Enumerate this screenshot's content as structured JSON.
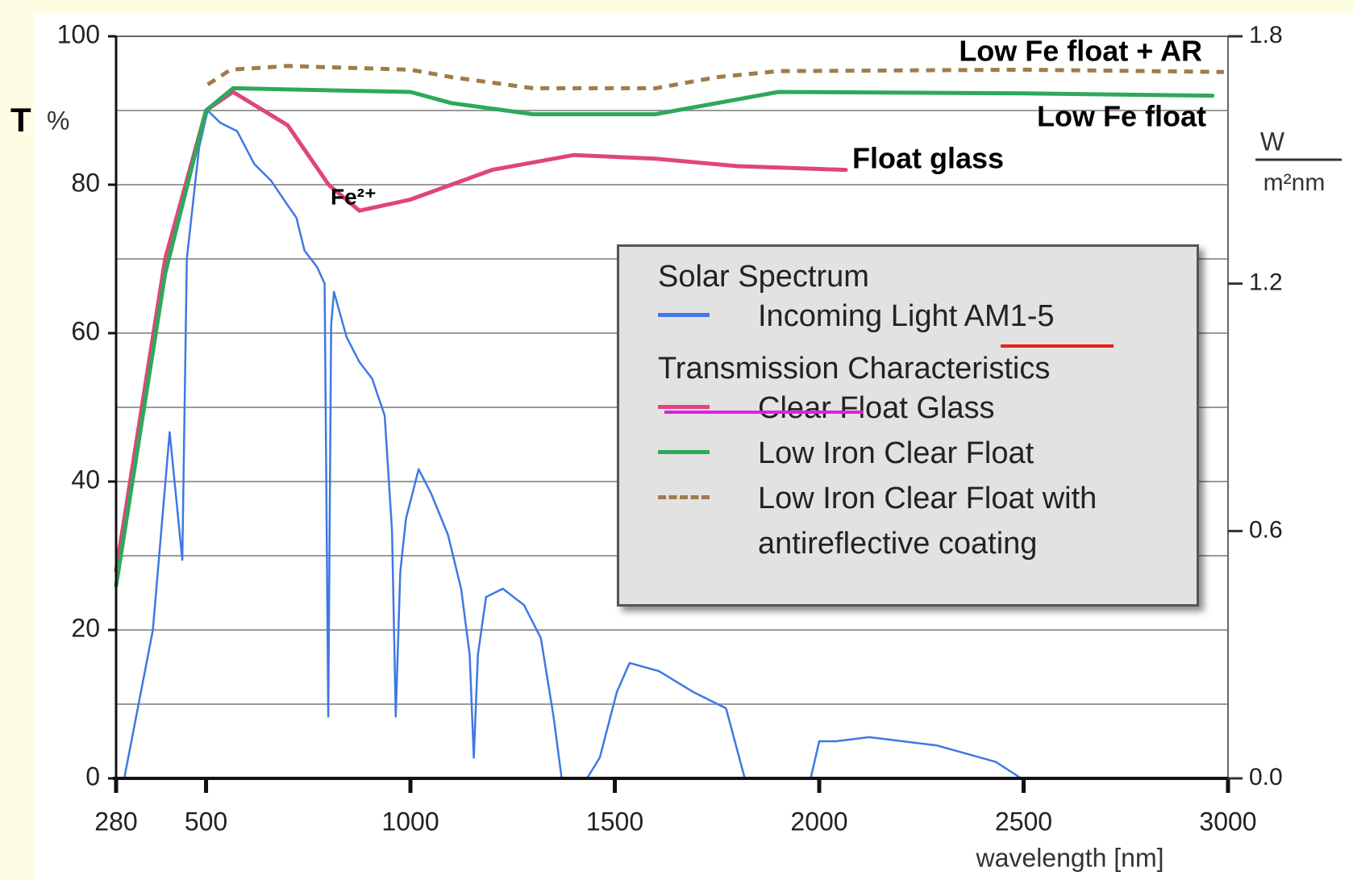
{
  "chart_data": {
    "type": "line",
    "ylabel": "T",
    "yunit": "%",
    "y2label": {
      "numerator": "W",
      "denominator": "m²nm"
    },
    "xlabel": "wavelength [nm]",
    "xlim": [
      280,
      3000
    ],
    "xticks": [
      280,
      500,
      1000,
      1500,
      2000,
      2500,
      3000
    ],
    "ylim": [
      0,
      100
    ],
    "yticks": [
      0,
      20,
      40,
      60,
      80,
      100
    ],
    "ygrid": [
      10,
      20,
      30,
      40,
      50,
      60,
      70,
      80,
      90
    ],
    "y2lim": [
      0,
      1.8
    ],
    "y2ticks": [
      {
        "value": 0,
        "label": "0.0"
      },
      0.6,
      1.2,
      1.8
    ],
    "grid": true,
    "legend_groups": [
      "Solar Spectrum",
      "Transmission Characteristics"
    ],
    "annotations": [
      "Low Fe float + AR",
      "Low Fe float",
      "Float glass",
      "Fe²⁺"
    ],
    "series": [
      {
        "name": "Incoming Light AM1-5",
        "color": "#3f78e4",
        "axis": "y2",
        "dash": false,
        "x": [
          300,
          370,
          411,
          442,
          453,
          483,
          504,
          535,
          576,
          618,
          659,
          700,
          721,
          741,
          772,
          790,
          799,
          806,
          813,
          844,
          875,
          906,
          937,
          955,
          964,
          975,
          989,
          1020,
          1051,
          1092,
          1124,
          1145,
          1155,
          1165,
          1185,
          1226,
          1278,
          1319,
          1350,
          1370,
          1432,
          1463,
          1505,
          1536,
          1608,
          1691,
          1772,
          1818,
          1979,
          2000,
          2041,
          2122,
          2287,
          2432,
          2494,
          2948
        ],
        "values": [
          0,
          0.36,
          0.84,
          0.53,
          1.26,
          1.53,
          1.62,
          1.59,
          1.57,
          1.49,
          1.45,
          1.39,
          1.36,
          1.28,
          1.24,
          1.2,
          0.15,
          1.1,
          1.18,
          1.07,
          1.01,
          0.97,
          0.88,
          0.6,
          0.15,
          0.5,
          0.63,
          0.75,
          0.69,
          0.59,
          0.46,
          0.3,
          0.05,
          0.3,
          0.44,
          0.46,
          0.42,
          0.34,
          0.15,
          0,
          0,
          0.05,
          0.21,
          0.28,
          0.26,
          0.21,
          0.17,
          0,
          0,
          0.09,
          0.09,
          0.1,
          0.08,
          0.04,
          0,
          0
        ]
      },
      {
        "name": "Clear Float Glass",
        "color": "#e0457b",
        "dash": false,
        "x": [
          280,
          400,
          500,
          566,
          700,
          800,
          875,
          1000,
          1200,
          1400,
          1600,
          1800,
          2065
        ],
        "values": [
          28,
          70,
          90,
          92.5,
          88,
          80,
          76.5,
          78,
          82,
          84,
          83.5,
          82.5,
          82
        ]
      },
      {
        "name": "Low Iron Clear Float",
        "color": "#2fa85c",
        "dash": false,
        "x": [
          280,
          400,
          500,
          566,
          1000,
          1100,
          1300,
          1600,
          1750,
          1900,
          2500,
          2962
        ],
        "values": [
          26,
          68,
          90,
          93,
          92.5,
          91,
          89.5,
          89.5,
          91,
          92.5,
          92.3,
          92
        ]
      },
      {
        "name": "Low Iron Clear Float with antireflective coating",
        "color": "#a27b4c",
        "dash": true,
        "x": [
          504,
          560,
          700,
          1000,
          1100,
          1300,
          1600,
          1750,
          1900,
          2500,
          2990
        ],
        "values": [
          93.5,
          95.5,
          96,
          95.5,
          94.5,
          93,
          93,
          94.5,
          95.3,
          95.5,
          95.2
        ]
      }
    ]
  }
}
